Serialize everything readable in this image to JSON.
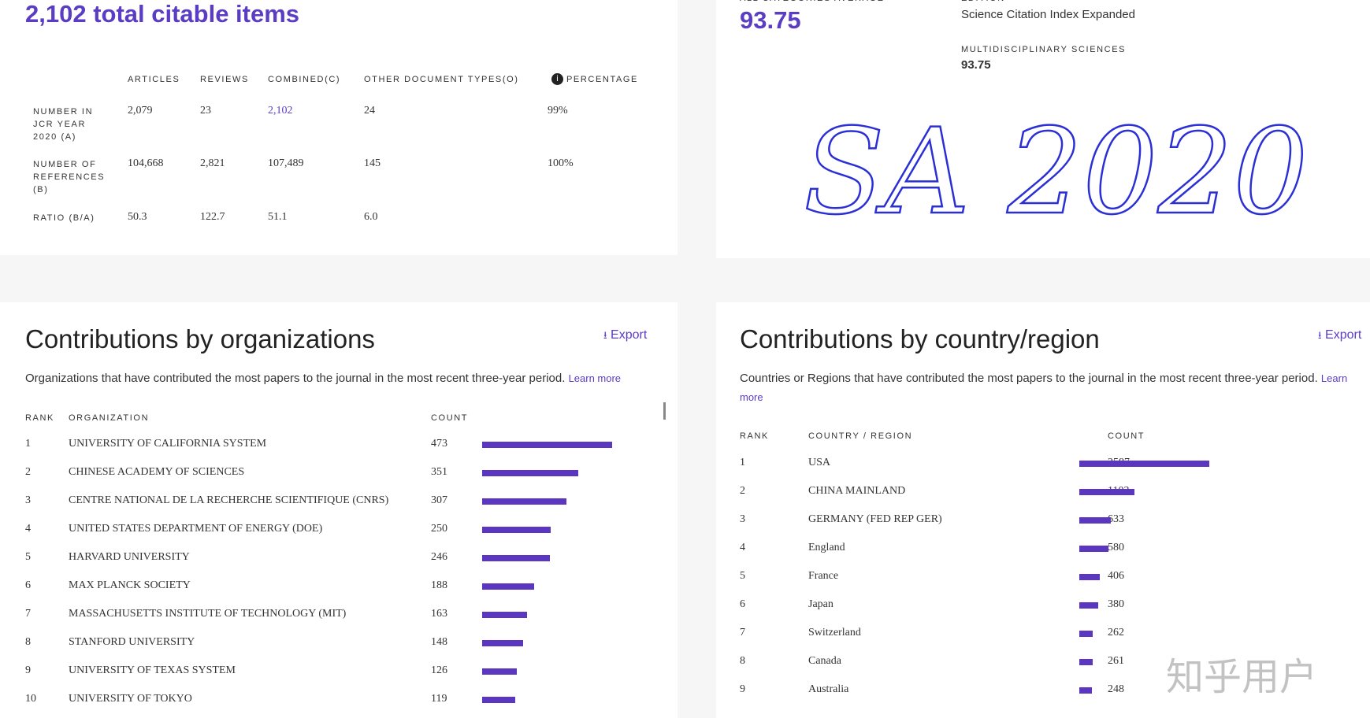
{
  "citable": {
    "title": "2,102 total citable items",
    "columns": [
      "ARTICLES",
      "REVIEWS",
      "COMBINED(C)",
      "OTHER DOCUMENT TYPES(O)",
      "PERCENTAGE"
    ],
    "rows": [
      {
        "label": "NUMBER IN JCR YEAR 2020 (A)",
        "cells": [
          "2,079",
          "23",
          "2,102",
          "24",
          "99%"
        ]
      },
      {
        "label": "NUMBER OF REFERENCES (B)",
        "cells": [
          "104,668",
          "2,821",
          "107,489",
          "145",
          "100%"
        ]
      },
      {
        "label": "RATIO (B/A)",
        "cells": [
          "50.3",
          "122.7",
          "51.1",
          "6.0",
          ""
        ]
      }
    ]
  },
  "jif": {
    "average_label": "ALL CATEGORIES AVERAGE",
    "average": "93.75",
    "edition_label": "EDITION",
    "edition": "Science Citation Index Expanded",
    "category": "MULTIDISCIPLINARY SCIENCES",
    "category_value": "93.75"
  },
  "handwriting": "SA 2020",
  "organizations": {
    "title": "Contributions by organizations",
    "export": "Export",
    "description": "Organizations that have contributed the most papers to the journal in the most recent three-year period.",
    "learn_more": "Learn more",
    "headers": [
      "RANK",
      "ORGANIZATION",
      "COUNT"
    ],
    "rows": [
      {
        "rank": "1",
        "name": "UNIVERSITY OF CALIFORNIA SYSTEM",
        "count": 473
      },
      {
        "rank": "2",
        "name": "CHINESE ACADEMY OF SCIENCES",
        "count": 351
      },
      {
        "rank": "3",
        "name": "CENTRE NATIONAL DE LA RECHERCHE SCIENTIFIQUE (CNRS)",
        "count": 307
      },
      {
        "rank": "4",
        "name": "UNITED STATES DEPARTMENT OF ENERGY (DOE)",
        "count": 250
      },
      {
        "rank": "5",
        "name": "HARVARD UNIVERSITY",
        "count": 246
      },
      {
        "rank": "6",
        "name": "MAX PLANCK SOCIETY",
        "count": 188
      },
      {
        "rank": "7",
        "name": "MASSACHUSETTS INSTITUTE OF TECHNOLOGY (MIT)",
        "count": 163
      },
      {
        "rank": "8",
        "name": "STANFORD UNIVERSITY",
        "count": 148
      },
      {
        "rank": "9",
        "name": "UNIVERSITY OF TEXAS SYSTEM",
        "count": 126
      },
      {
        "rank": "10",
        "name": "UNIVERSITY OF TOKYO",
        "count": 119
      }
    ]
  },
  "countries": {
    "title": "Contributions by country/region",
    "export": "Export",
    "description": "Countries or Regions that have contributed the most papers to the journal in the most recent three-year period.",
    "learn_more": "Learn more",
    "headers": [
      "RANK",
      "COUNTRY / REGION",
      "COUNT"
    ],
    "rows": [
      {
        "rank": "1",
        "name": "USA",
        "count": 2587
      },
      {
        "rank": "2",
        "name": "CHINA MAINLAND",
        "count": 1103
      },
      {
        "rank": "3",
        "name": "GERMANY (FED REP GER)",
        "count": 633
      },
      {
        "rank": "4",
        "name": "England",
        "count": 580
      },
      {
        "rank": "5",
        "name": "France",
        "count": 406
      },
      {
        "rank": "6",
        "name": "Japan",
        "count": 380
      },
      {
        "rank": "7",
        "name": "Switzerland",
        "count": 262
      },
      {
        "rank": "8",
        "name": "Canada",
        "count": 261
      },
      {
        "rank": "9",
        "name": "Australia",
        "count": 248
      }
    ]
  },
  "watermark": "知乎用户"
}
